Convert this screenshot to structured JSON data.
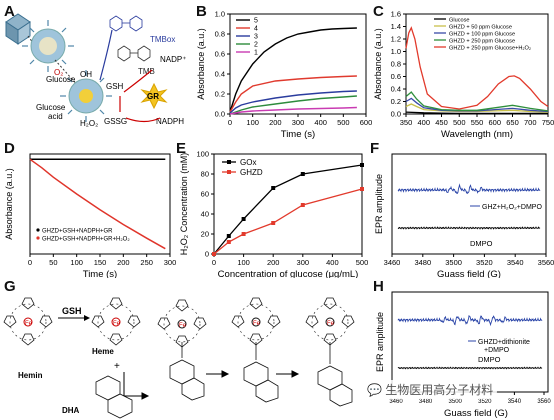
{
  "panels": {
    "A": {
      "label": "A",
      "texts": {
        "tmb_ox": "TMBox",
        "tmb": "TMB",
        "nadp": "NADP⁺",
        "nadph": "NADPH",
        "gr": "GR",
        "gsh": "GSH",
        "gssg": "GSSG",
        "h2o2": "H₂O₂",
        "oh": "OH",
        "o2": "O₂",
        "glucose": "Glucose",
        "glucose_acid_1": "Glucose",
        "glucose_acid_2": "acid"
      }
    },
    "B": {
      "label": "B",
      "chart_data": {
        "type": "line",
        "xlabel": "Time (s)",
        "ylabel": "Absorbance (a.u.)",
        "xlim": [
          0,
          600
        ],
        "ylim": [
          0,
          1.0
        ],
        "xticks": [
          0,
          100,
          200,
          300,
          400,
          500,
          600
        ],
        "yticks": [
          0.0,
          0.2,
          0.4,
          0.6,
          0.8,
          1.0
        ],
        "legend": "top-left",
        "series": [
          {
            "name": "5",
            "color": "#000000",
            "x": [
              0,
              25,
              50,
              100,
              150,
              200,
              250,
              300,
              350,
              400,
              450,
              500,
              560
            ],
            "y": [
              0.02,
              0.2,
              0.33,
              0.5,
              0.62,
              0.7,
              0.76,
              0.8,
              0.82,
              0.84,
              0.85,
              0.855,
              0.86
            ]
          },
          {
            "name": "4",
            "color": "#e03a2e",
            "x": [
              0,
              25,
              50,
              100,
              200,
              300,
              400,
              500,
              560
            ],
            "y": [
              0.02,
              0.12,
              0.2,
              0.28,
              0.33,
              0.35,
              0.365,
              0.375,
              0.38
            ]
          },
          {
            "name": "3",
            "color": "#2a3c9e",
            "x": [
              0,
              25,
              50,
              100,
              200,
              300,
              400,
              500,
              560
            ],
            "y": [
              0.01,
              0.06,
              0.09,
              0.12,
              0.16,
              0.19,
              0.21,
              0.225,
              0.23
            ]
          },
          {
            "name": "2",
            "color": "#2d8b3c",
            "x": [
              0,
              50,
              100,
              200,
              300,
              400,
              500,
              560
            ],
            "y": [
              0.0,
              0.04,
              0.07,
              0.1,
              0.13,
              0.155,
              0.17,
              0.18
            ]
          },
          {
            "name": "1",
            "color": "#c93bb2",
            "x": [
              0,
              50,
              100,
              200,
              300,
              400,
              500,
              560
            ],
            "y": [
              0.0,
              0.02,
              0.03,
              0.04,
              0.05,
              0.055,
              0.06,
              0.065
            ]
          }
        ]
      }
    },
    "C": {
      "label": "C",
      "chart_data": {
        "type": "line",
        "xlabel": "Wavelength (nm)",
        "ylabel": "Absorbance (a.u.)",
        "xlim": [
          350,
          750
        ],
        "ylim": [
          0,
          1.6
        ],
        "xticks": [
          350,
          400,
          450,
          500,
          550,
          600,
          650,
          700,
          750
        ],
        "yticks": [
          0.0,
          0.2,
          0.4,
          0.6,
          0.8,
          1.0,
          1.2,
          1.4,
          1.6
        ],
        "legend": "top-left",
        "series": [
          {
            "name": "Glucose",
            "color": "#000000",
            "x": [
              350,
              400,
              450,
              500,
              550,
              600,
              650,
              700,
              750
            ],
            "y": [
              0.03,
              0.02,
              0.015,
              0.01,
              0.01,
              0.01,
              0.01,
              0.01,
              0.01
            ]
          },
          {
            "name": "GHZD + 50 ppm Glucose",
            "color": "#c8c04a",
            "x": [
              350,
              365,
              380,
              400,
              450,
              500,
              550,
              600,
              650,
              700,
              750
            ],
            "y": [
              0.12,
              0.16,
              0.12,
              0.07,
              0.05,
              0.04,
              0.04,
              0.05,
              0.06,
              0.04,
              0.03
            ]
          },
          {
            "name": "GHZD + 100 ppm Glucose",
            "color": "#3a4aa8",
            "x": [
              350,
              365,
              380,
              400,
              450,
              500,
              550,
              600,
              650,
              700,
              750
            ],
            "y": [
              0.2,
              0.25,
              0.18,
              0.1,
              0.06,
              0.05,
              0.05,
              0.07,
              0.09,
              0.06,
              0.04
            ]
          },
          {
            "name": "GHZD + 250 ppm Glucose",
            "color": "#2f8f3c",
            "x": [
              350,
              365,
              380,
              400,
              450,
              500,
              550,
              600,
              650,
              700,
              750
            ],
            "y": [
              0.28,
              0.35,
              0.24,
              0.13,
              0.07,
              0.06,
              0.06,
              0.1,
              0.14,
              0.09,
              0.05
            ]
          },
          {
            "name": "GHZD + 250 ppm Glucose+H₂O₂",
            "color": "#e23a2c",
            "x": [
              350,
              358,
              365,
              375,
              390,
              410,
              450,
              500,
              550,
              580,
              610,
              640,
              655,
              670,
              700,
              730,
              750
            ],
            "y": [
              1.05,
              1.3,
              1.38,
              1.2,
              0.75,
              0.32,
              0.12,
              0.08,
              0.14,
              0.28,
              0.48,
              0.6,
              0.61,
              0.57,
              0.4,
              0.2,
              0.12
            ]
          }
        ]
      }
    },
    "D": {
      "label": "D",
      "chart_data": {
        "type": "line",
        "xlabel": "Time (s)",
        "ylabel": "Absorbance (a.u.)",
        "xlim": [
          0,
          300
        ],
        "xticks": [
          0,
          50,
          100,
          150,
          200,
          250,
          300
        ],
        "legend": "bottom-left",
        "series": [
          {
            "name": "GHZD+GSH+NADPH+GR",
            "color": "#000000",
            "x": [
              0,
              100,
              200,
              290
            ],
            "y": [
              0.0,
              0.0,
              0.0,
              0.0
            ]
          },
          {
            "name": "GHZD+GSH+NADPH+GR+H₂O₂",
            "color": "#e0352b",
            "x": [
              0,
              25,
              50,
              100,
              150,
              200,
              250,
              290
            ],
            "y": [
              0.0,
              -0.08,
              -0.17,
              -0.33,
              -0.48,
              -0.62,
              -0.75,
              -0.85
            ]
          }
        ]
      }
    },
    "E": {
      "label": "E",
      "chart_data": {
        "type": "line",
        "xlabel": "Concentration of glucose  (μg/mL)",
        "ylabel": "H₂O₂ Concentration (mM)",
        "xlim": [
          0,
          500
        ],
        "ylim": [
          0,
          100
        ],
        "xticks": [
          0,
          100,
          200,
          300,
          400,
          500
        ],
        "yticks": [
          0,
          20,
          40,
          60,
          80,
          100
        ],
        "legend": "top-left",
        "series": [
          {
            "name": "GOx",
            "color": "#000000",
            "x": [
              0,
              50,
              100,
              200,
              300,
              500
            ],
            "y": [
              0,
              18,
              35,
              66,
              80,
              89
            ]
          },
          {
            "name": "GHZD",
            "color": "#e23a2c",
            "x": [
              0,
              50,
              100,
              200,
              300,
              500
            ],
            "y": [
              0,
              12,
              20,
              31,
              49,
              65
            ]
          }
        ]
      }
    },
    "F": {
      "label": "F",
      "chart_data": {
        "type": "line",
        "xlabel": "Guass field (G)",
        "ylabel": "EPR amplitude",
        "xlim": [
          3460,
          3560
        ],
        "xticks": [
          3460,
          3480,
          3500,
          3520,
          3540,
          3560
        ],
        "legend": "right",
        "series": [
          {
            "name": "GHZ+H₂O₂+DMPO",
            "color": "#2b45a8"
          },
          {
            "name": "DMPO",
            "color": "#000000"
          }
        ]
      }
    },
    "G": {
      "label": "G",
      "texts": {
        "gsh": "GSH",
        "hemin": "Hemin",
        "heme": "Heme",
        "dha": "DHA",
        "plus": "+"
      }
    },
    "H": {
      "label": "H",
      "chart_data": {
        "type": "line",
        "xlabel": "Guass field (G)",
        "ylabel": "EPR amplitude",
        "xticks_visible": [
          "3460",
          "3480",
          "3500",
          "3520",
          "3540",
          "3560"
        ],
        "series": [
          {
            "name": "GHZD+dithionite +DMPO",
            "color": "#2b45a8"
          },
          {
            "name": "DMPO",
            "color": "#000000"
          }
        ]
      }
    }
  },
  "watermark": "生物医用高分子材料"
}
